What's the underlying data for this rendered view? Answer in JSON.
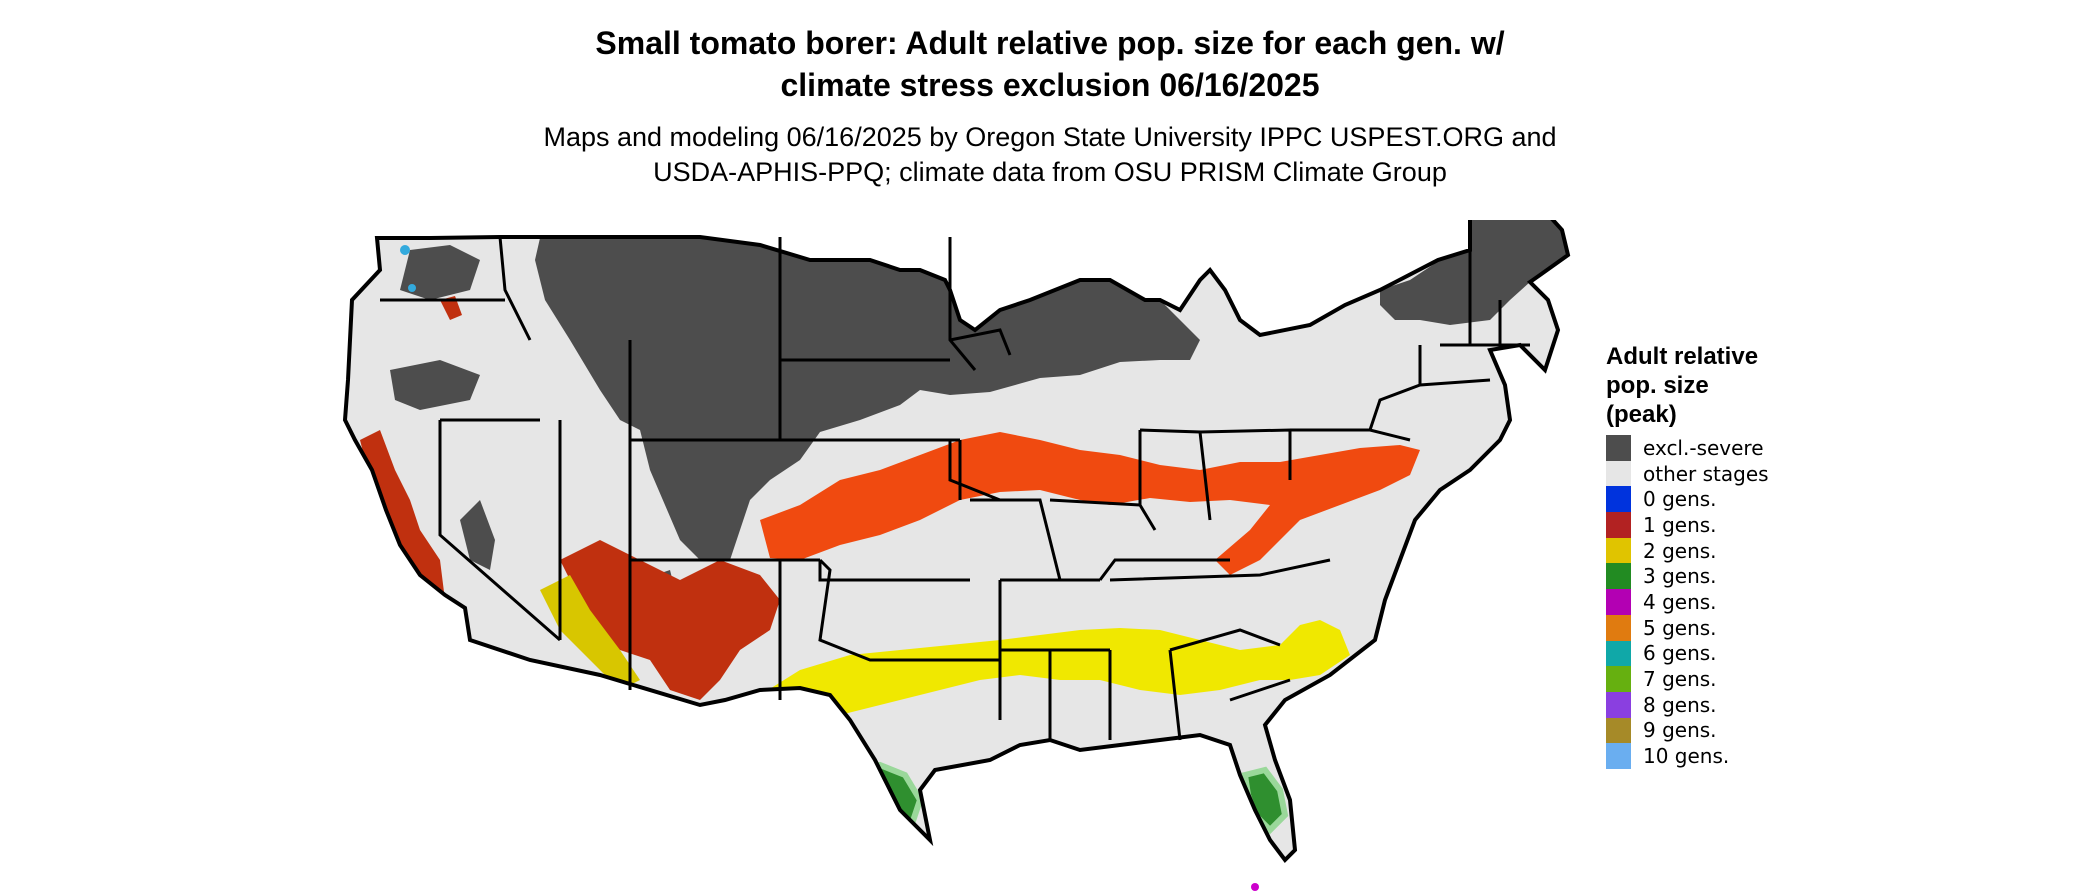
{
  "title": {
    "line1": "Small tomato borer: Adult relative pop. size for each gen. w/",
    "line2": "climate stress exclusion 06/16/2025"
  },
  "subtitle": {
    "line1": "Maps and modeling 06/16/2025 by Oregon State University IPPC USPEST.ORG and",
    "line2": "USDA-APHIS-PPQ; climate data from OSU PRISM Climate Group"
  },
  "legend": {
    "title_lines": [
      "Adult relative",
      "pop. size",
      "(peak)"
    ],
    "items": [
      {
        "label": "excl.-severe",
        "color": "#4d4d4d"
      },
      {
        "label": "other stages",
        "color": "#e6e6e6"
      },
      {
        "label": "0 gens.",
        "color": "#0033dd"
      },
      {
        "label": "1 gens.",
        "color": "#b22222"
      },
      {
        "label": "2 gens.",
        "color": "#e0c400"
      },
      {
        "label": "3 gens.",
        "color": "#228b22"
      },
      {
        "label": "4 gens.",
        "color": "#b300b3"
      },
      {
        "label": "5 gens.",
        "color": "#e07b10"
      },
      {
        "label": "6 gens.",
        "color": "#10a8a8"
      },
      {
        "label": "7 gens.",
        "color": "#66b010"
      },
      {
        "label": "8 gens.",
        "color": "#8a3fe0"
      },
      {
        "label": "9 gens.",
        "color": "#a68a28"
      },
      {
        "label": "10 gens.",
        "color": "#6aaef0"
      }
    ]
  },
  "map": {
    "colors": {
      "excluded": "#4d4d4d",
      "other": "#e6e6e6",
      "gen1": "#c0300f",
      "gen1_bright": "#f04a10",
      "gen2": "#f0e800",
      "gen2_dark": "#d8c600",
      "gen3": "#2f8f2f",
      "gen3_light": "#9ad89a",
      "gen4": "#cc00cc",
      "gen10": "#33aadd",
      "border": "#000000"
    }
  }
}
